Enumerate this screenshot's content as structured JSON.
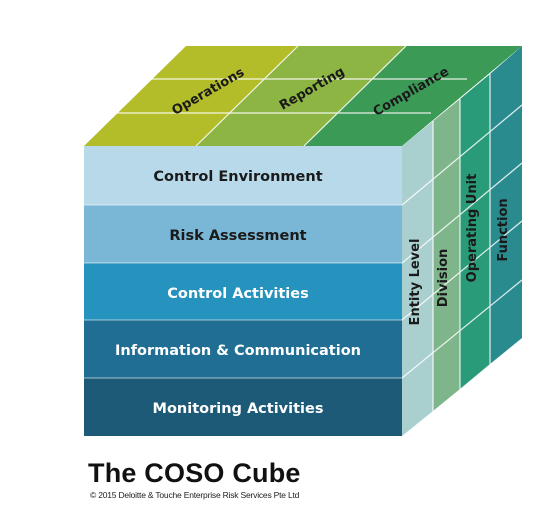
{
  "diagram": {
    "top_labels": [
      "Operations",
      "Reporting",
      "Compliance"
    ],
    "front_rows": [
      "Control Environment",
      "Risk Assessment",
      "Control Activities",
      "Information & Communication",
      "Monitoring Activities"
    ],
    "side_labels": [
      "Entity Level",
      "Division",
      "Operating Unit",
      "Function"
    ]
  },
  "caption": {
    "title": "The COSO Cube",
    "copyright": "© 2015 Deloitte & Touche Enterprise Risk Services Pte Ltd"
  }
}
